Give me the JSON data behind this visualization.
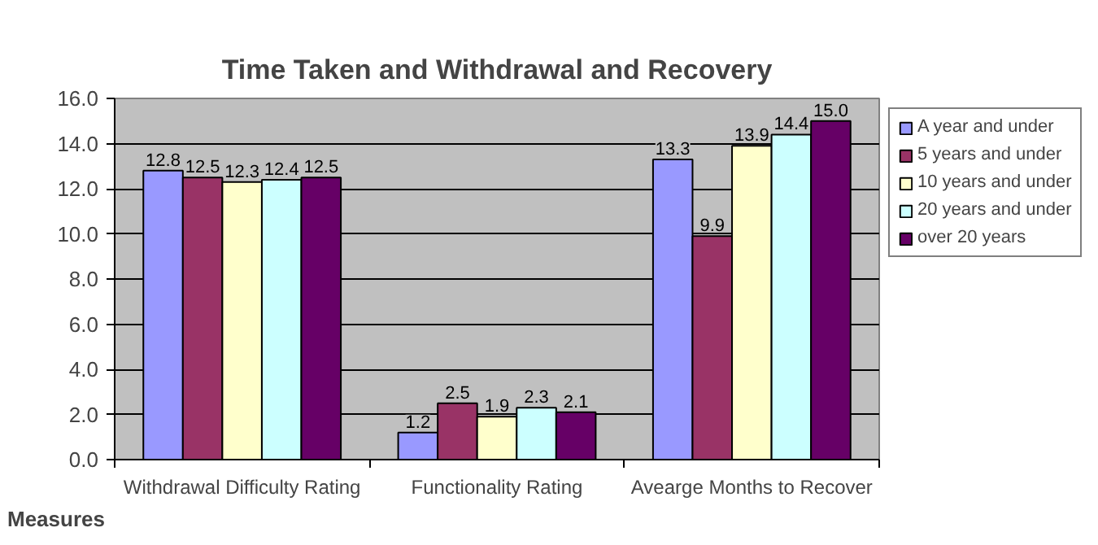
{
  "chart_data": {
    "type": "bar",
    "title": "Time Taken and Withdrawal and Recovery",
    "xlabel": "Measures",
    "categories": [
      "Withdrawal Difficulty Rating",
      "Functionality Rating",
      "Avearge Months to Recover"
    ],
    "series": [
      {
        "name": "A year and under",
        "color": "#9999ff",
        "values": [
          12.8,
          1.2,
          13.3
        ],
        "value_labels": [
          "12.8",
          "1.2",
          "13.3"
        ]
      },
      {
        "name": "5 years and under",
        "color": "#993366",
        "values": [
          12.5,
          2.5,
          9.9
        ],
        "value_labels": [
          "12.5",
          "2.5",
          "9.9"
        ]
      },
      {
        "name": "10 years and under",
        "color": "#ffffcc",
        "values": [
          12.3,
          1.9,
          13.9
        ],
        "value_labels": [
          "12.3",
          "1.9",
          "13.9"
        ]
      },
      {
        "name": "20 years and under",
        "color": "#ccffff",
        "values": [
          12.4,
          2.3,
          14.4
        ],
        "value_labels": [
          "12.4",
          "2.3",
          "14.4"
        ]
      },
      {
        "name": "over 20 years",
        "color": "#660066",
        "values": [
          12.5,
          2.1,
          15.0
        ],
        "value_labels": [
          "12.5",
          "2.1",
          "15.0"
        ]
      }
    ],
    "ylim": [
      0,
      16
    ],
    "yticks": [
      {
        "value": 0,
        "label": "0.0"
      },
      {
        "value": 2,
        "label": "2.0"
      },
      {
        "value": 4,
        "label": "4.0"
      },
      {
        "value": 6,
        "label": "6.0"
      },
      {
        "value": 8,
        "label": "8.0"
      },
      {
        "value": 10,
        "label": "10.0"
      },
      {
        "value": 12,
        "label": "12.0"
      },
      {
        "value": 14,
        "label": "14.0"
      },
      {
        "value": 16,
        "label": "16.0"
      }
    ],
    "grid": "y",
    "legend": "right"
  }
}
